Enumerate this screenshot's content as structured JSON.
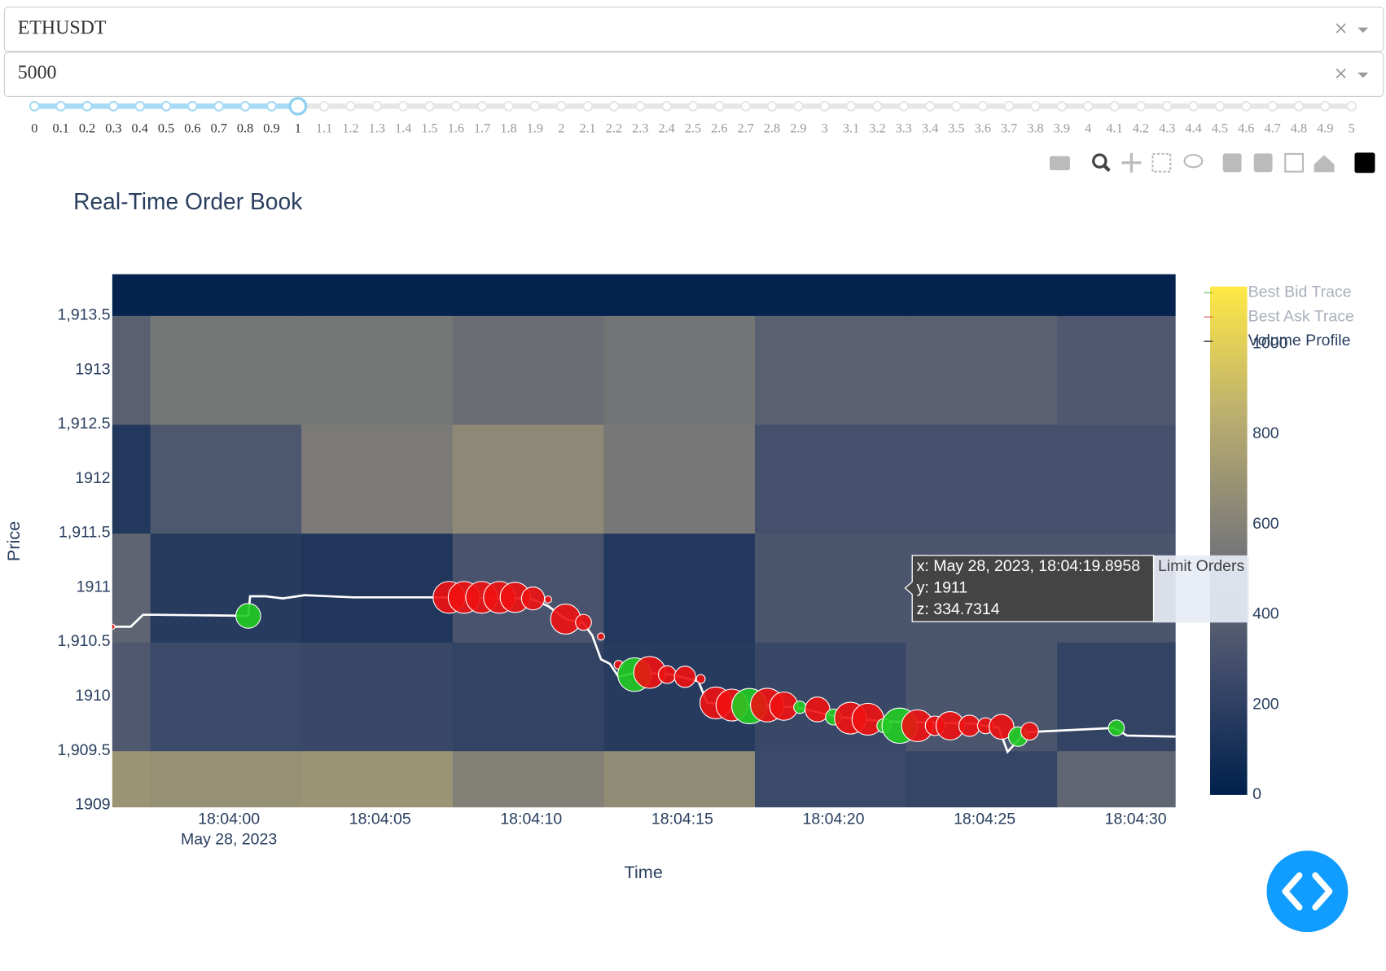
{
  "dropdowns": [
    {
      "value": "ETHUSDT"
    },
    {
      "value": "5000"
    }
  ],
  "slider": {
    "value": 1,
    "marks": [
      0,
      0.1,
      0.2,
      0.3,
      0.4,
      0.5,
      0.6,
      0.7,
      0.8,
      0.9,
      1,
      1.1,
      1.2,
      1.3,
      1.4,
      1.5,
      1.6,
      1.7,
      1.8,
      1.9,
      2,
      2.1,
      2.2,
      2.3,
      2.4,
      2.5,
      2.6,
      2.7,
      2.8,
      2.9,
      3,
      3.1,
      3.2,
      3.3,
      3.4,
      3.5,
      3.6,
      3.7,
      3.8,
      3.9,
      4,
      4.1,
      4.2,
      4.3,
      4.4,
      4.5,
      4.6,
      4.7,
      4.8,
      4.9,
      5
    ]
  },
  "chart_data": {
    "type": "heatmap",
    "title": "Real-Time Order Book",
    "xlabel": "Time",
    "ylabel": "Price",
    "xlim": [
      "2023-05-28 18:03:56.14",
      "2023-05-28 18:04:31.32"
    ],
    "xticks": [
      {
        "value": "2023-05-28 18:04:00",
        "label": "18:04:00"
      },
      {
        "value": "2023-05-28 18:04:05",
        "label": "18:04:05"
      },
      {
        "value": "2023-05-28 18:04:10",
        "label": "18:04:10"
      },
      {
        "value": "2023-05-28 18:04:15",
        "label": "18:04:15"
      },
      {
        "value": "2023-05-28 18:04:20",
        "label": "18:04:20"
      },
      {
        "value": "2023-05-28 18:04:25",
        "label": "18:04:25"
      },
      {
        "value": "2023-05-28 18:04:30",
        "label": "18:04:30"
      }
    ],
    "xtick_date": "May 28, 2023",
    "ylim": [
      1908.98,
      1913.88
    ],
    "yticks": [
      1909,
      {
        "value": 1909.5,
        "label": "1,909.5"
      },
      1910,
      {
        "value": 1910.5,
        "label": "1,910.5"
      },
      1911,
      {
        "value": 1911.5,
        "label": "1,911.5"
      },
      1912,
      {
        "value": 1912.5,
        "label": "1,912.5"
      },
      1913,
      {
        "value": 1913.5,
        "label": "1,913.5"
      }
    ],
    "heatmap": {
      "x": [
        "2023-05-28 18:03:54.9",
        "2023-05-28 18:03:59.9",
        "2023-05-28 18:04:04.9",
        "2023-05-28 18:04:09.9",
        "2023-05-28 18:04:14.9",
        "2023-05-28 18:04:19.9",
        "2023-05-28 18:04:24.9",
        "2023-05-28 18:04:29.9"
      ],
      "y": [
        1909,
        1910,
        1911,
        1912,
        1913,
        1914
      ],
      "z": [
        [
          700,
          680,
          700,
          590,
          650,
          260,
          230,
          430
        ],
        [
          350,
          260,
          250,
          220,
          170,
          250,
          330,
          220
        ],
        [
          420,
          170,
          140,
          320,
          150,
          330,
          330,
          330
        ],
        [
          150,
          340,
          560,
          640,
          540,
          300,
          300,
          300
        ],
        [
          400,
          530,
          530,
          480,
          520,
          400,
          400,
          350
        ],
        [
          20,
          20,
          20,
          20,
          20,
          20,
          20,
          20
        ]
      ],
      "colorscale": [
        [
          0,
          "#00204c"
        ],
        [
          0.25,
          "#414d6b"
        ],
        [
          0.5,
          "#7c7b78"
        ],
        [
          0.75,
          "#bcaf6f"
        ],
        [
          1,
          "#ffe945"
        ]
      ],
      "zlim": [
        0,
        1127
      ],
      "colorbar_ticks": [
        0,
        200,
        400,
        600,
        800,
        1000
      ]
    },
    "series": [
      {
        "type": "line",
        "color": "#ffffff",
        "x": [
          "2023-05-28 18:03:56.14",
          "2023-05-28 18:03:56.75",
          "2023-05-28 18:03:57.16",
          "2023-05-28 18:03:57.54",
          "2023-05-28 18:04:00.64",
          "2023-05-28 18:04:00.70",
          "2023-05-28 18:04:01.20",
          "2023-05-28 18:04:01.78",
          "2023-05-28 18:04:02.51",
          "2023-05-28 18:04:04.12",
          "2023-05-28 18:04:06.61",
          "2023-05-28 18:04:09.97",
          "2023-05-28 18:04:10.56",
          "2023-05-28 18:04:11.14",
          "2023-05-28 18:04:11.73",
          "2023-05-28 18:04:12.02",
          "2023-05-28 18:04:12.31",
          "2023-05-28 18:04:12.60",
          "2023-05-28 18:04:12.89",
          "2023-05-28 18:04:13.48",
          "2023-05-28 18:04:14.65",
          "2023-05-28 18:04:15.53",
          "2023-05-28 18:04:15.82",
          "2023-05-28 18:04:18.74",
          "2023-05-28 18:04:20.20",
          "2023-05-28 18:04:21.67",
          "2023-05-28 18:04:24.59",
          "2023-05-28 18:04:25.47",
          "2023-05-28 18:04:25.76",
          "2023-05-28 18:04:26.35",
          "2023-05-28 18:04:29.27",
          "2023-05-28 18:04:29.71",
          "2023-05-28 18:04:31.32"
        ],
        "values": [
          1910.64,
          1910.64,
          1910.75,
          1910.75,
          1910.74,
          1910.92,
          1910.92,
          1910.9,
          1910.93,
          1910.91,
          1910.91,
          1910.9,
          1910.83,
          1910.71,
          1910.67,
          1910.56,
          1910.34,
          1910.3,
          1910.18,
          1910.22,
          1910.2,
          1910.14,
          1909.94,
          1909.9,
          1909.81,
          1909.77,
          1909.75,
          1909.71,
          1909.49,
          1909.67,
          1909.71,
          1909.64,
          1909.63
        ]
      },
      {
        "type": "scatter",
        "x": [
          "2023-05-28 18:03:56.14",
          "2023-05-28 18:04:00.64",
          "2023-05-28 18:04:07.28",
          "2023-05-28 18:04:07.78",
          "2023-05-28 18:04:08.36",
          "2023-05-28 18:04:08.95",
          "2023-05-28 18:04:09.47",
          "2023-05-28 18:04:10.06",
          "2023-05-28 18:04:10.56",
          "2023-05-28 18:04:11.14",
          "2023-05-28 18:04:11.73",
          "2023-05-28 18:04:12.31",
          "2023-05-28 18:04:12.89",
          "2023-05-28 18:04:13.42",
          "2023-05-28 18:04:13.92",
          "2023-05-28 18:04:14.50",
          "2023-05-28 18:04:15.09",
          "2023-05-28 18:04:15.61",
          "2023-05-28 18:04:16.11",
          "2023-05-28 18:04:16.64",
          "2023-05-28 18:04:17.22",
          "2023-05-28 18:04:17.81",
          "2023-05-28 18:04:18.36",
          "2023-05-28 18:04:18.89",
          "2023-05-28 18:04:19.47",
          "2023-05-28 18:04:20.00",
          "2023-05-28 18:04:20.56",
          "2023-05-28 18:04:21.14",
          "2023-05-28 18:04:21.67",
          "2023-05-28 18:04:22.19",
          "2023-05-28 18:04:22.78",
          "2023-05-28 18:04:23.36",
          "2023-05-28 18:04:23.86",
          "2023-05-28 18:04:24.50",
          "2023-05-28 18:04:25.03",
          "2023-05-28 18:04:25.56",
          "2023-05-28 18:04:26.11",
          "2023-05-28 18:04:26.49",
          "2023-05-28 18:04:29.36"
        ],
        "values": [
          1910.64,
          1910.74,
          1910.91,
          1910.91,
          1910.91,
          1910.91,
          1910.91,
          1910.9,
          1910.89,
          1910.71,
          1910.68,
          1910.55,
          1910.29,
          1910.2,
          1910.22,
          1910.2,
          1910.18,
          1910.16,
          1909.94,
          1909.92,
          1909.91,
          1909.92,
          1909.91,
          1909.9,
          1909.88,
          1909.81,
          1909.8,
          1909.79,
          1909.73,
          1909.73,
          1909.73,
          1909.73,
          1909.73,
          1909.73,
          1909.73,
          1909.72,
          1909.63,
          1909.68,
          1909.71
        ],
        "sizes": [
          6,
          28,
          36,
          36,
          36,
          36,
          34,
          26,
          8,
          34,
          18,
          8,
          10,
          38,
          36,
          20,
          24,
          10,
          36,
          36,
          40,
          38,
          32,
          14,
          28,
          18,
          36,
          36,
          16,
          40,
          36,
          22,
          32,
          24,
          18,
          28,
          22,
          20,
          18
        ],
        "colors": [
          "#ee1111",
          "#22cc22",
          "#ee1111",
          "#ee1111",
          "#ee1111",
          "#ee1111",
          "#ee1111",
          "#ee1111",
          "#ee1111",
          "#ee1111",
          "#ee1111",
          "#ee1111",
          "#ee1111",
          "#22cc22",
          "#ee1111",
          "#ee1111",
          "#ee1111",
          "#ee1111",
          "#ee1111",
          "#ee1111",
          "#22cc22",
          "#ee1111",
          "#ee1111",
          "#22cc22",
          "#ee1111",
          "#22cc22",
          "#ee1111",
          "#ee1111",
          "#22cc22",
          "#22cc22",
          "#ee1111",
          "#ee1111",
          "#ee1111",
          "#ee1111",
          "#ee1111",
          "#ee1111",
          "#22cc22",
          "#ee1111",
          "#22cc22"
        ]
      }
    ],
    "legend": [
      {
        "name": "Best Bid Trace",
        "color": "#2ca02c",
        "hidden": true
      },
      {
        "name": "Best Ask Trace",
        "color": "#d62728",
        "hidden": true
      },
      {
        "name": "Volume Profile",
        "color": "#444444",
        "hidden": false
      }
    ],
    "tooltip": {
      "lines": [
        "x: May 28, 2023, 18:04:19.8958",
        "y: 1911",
        "z: 334.7314"
      ],
      "trace": "Limit Orders"
    }
  }
}
